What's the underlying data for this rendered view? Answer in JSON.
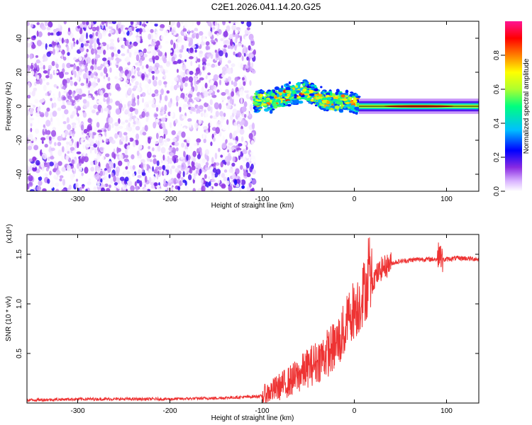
{
  "title": "C2E1.2026.041.14.20.G25",
  "chart_data": [
    {
      "type": "heatmap",
      "xlabel": "Height of straight line (km)",
      "ylabel": "Frequency (Hz)",
      "xlim": [
        -355,
        135
      ],
      "ylim": [
        -50,
        50
      ],
      "xticks": [
        -300,
        -200,
        -100,
        0,
        100
      ],
      "yticks": [
        -40,
        -20,
        0,
        20,
        40
      ],
      "colorbar": {
        "label": "Normalized spectral amplitude",
        "range": [
          0.0,
          1.0
        ],
        "ticks": [
          0.0,
          0.2,
          0.4,
          0.6,
          0.8
        ],
        "colors": [
          "#ffffff",
          "#d9b3ff",
          "#8a2be2",
          "#0000ff",
          "#00bfff",
          "#00ff7f",
          "#adff2f",
          "#ffff00",
          "#ff7f00",
          "#ff0000",
          "#ff1493"
        ]
      },
      "regions": [
        {
          "x_range": [
            -355,
            -108
          ],
          "f_range": [
            -50,
            50
          ],
          "amplitude": [
            0.0,
            0.3
          ],
          "description_level": "noise"
        },
        {
          "x_range": [
            -108,
            5
          ],
          "center_freq": [
            [
              -108,
              3
            ],
            [
              -90,
              3
            ],
            [
              -80,
              5
            ],
            [
              -70,
              7
            ],
            [
              -60,
              8
            ],
            [
              -50,
              9
            ],
            [
              -40,
              6
            ],
            [
              -30,
              3
            ],
            [
              -20,
              3
            ],
            [
              -10,
              3
            ],
            [
              0,
              2
            ],
            [
              5,
              1
            ]
          ],
          "amplitude": [
            0.3,
            0.95
          ]
        },
        {
          "x_range": [
            5,
            135
          ],
          "center_freq": 0,
          "amplitude": [
            0.5,
            1.0
          ]
        }
      ]
    },
    {
      "type": "line",
      "xlabel": "Height of straight line (km)",
      "ylabel": "SNR (10 * v/v)",
      "y_multiplier": "(x10⁴)",
      "xlim": [
        -355,
        135
      ],
      "ylim": [
        0,
        1.7
      ],
      "xticks": [
        -300,
        -200,
        -100,
        0,
        100
      ],
      "yticks": [
        0.5,
        1.0,
        1.5
      ],
      "ytick_labels": [
        "0.5",
        "1.0",
        "1.5"
      ],
      "color": "#ee3333",
      "series": [
        {
          "x": [
            -355,
            -300,
            -250,
            -200,
            -150,
            -120,
            -100,
            -90,
            -80,
            -70,
            -60,
            -50,
            -40,
            -30,
            -20,
            -10,
            -5,
            0,
            5,
            10,
            15,
            20,
            25,
            30,
            40,
            50,
            60,
            70,
            80,
            90,
            92,
            95,
            100,
            110,
            120,
            135
          ],
          "y": [
            0.03,
            0.04,
            0.04,
            0.04,
            0.05,
            0.06,
            0.07,
            0.12,
            0.17,
            0.22,
            0.28,
            0.36,
            0.42,
            0.5,
            0.58,
            0.74,
            0.9,
            0.95,
            1.0,
            1.12,
            1.2,
            1.25,
            1.3,
            1.36,
            1.41,
            1.43,
            1.44,
            1.45,
            1.45,
            1.45,
            1.55,
            1.44,
            1.45,
            1.46,
            1.46,
            1.45
          ]
        }
      ]
    }
  ]
}
